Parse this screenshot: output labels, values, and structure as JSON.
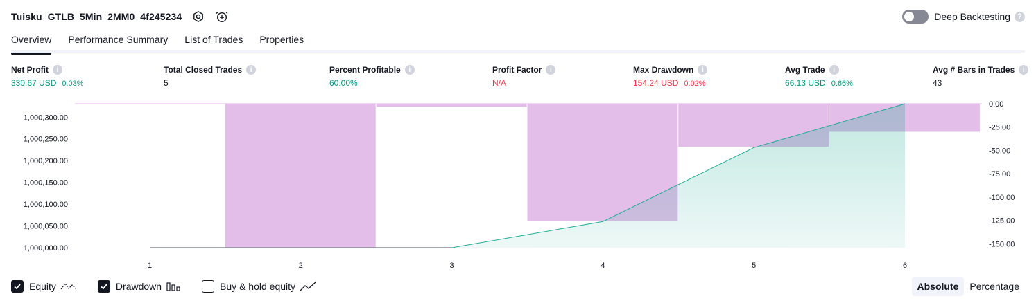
{
  "header": {
    "strategy_name": "Tuisku_GTLB_5Min_2MM0_4f245234",
    "settings_icon": "settings-icon",
    "alert_icon": "alarm-add-icon"
  },
  "deep_backtesting": {
    "label": "Deep Backtesting",
    "enabled": false,
    "help_icon": "question-icon"
  },
  "tabs": [
    {
      "label": "Overview",
      "active": true
    },
    {
      "label": "Performance Summary",
      "active": false
    },
    {
      "label": "List of Trades",
      "active": false
    },
    {
      "label": "Properties",
      "active": false
    }
  ],
  "stats": [
    {
      "label": "Net Profit",
      "value": "330.67 USD",
      "pct": "0.03%",
      "tone": "pos"
    },
    {
      "label": "Total Closed Trades",
      "value": "5",
      "pct": "",
      "tone": "neutral"
    },
    {
      "label": "Percent Profitable",
      "value": "60.00%",
      "pct": "",
      "tone": "pos"
    },
    {
      "label": "Profit Factor",
      "value": "N/A",
      "pct": "",
      "tone": "neg"
    },
    {
      "label": "Max Drawdown",
      "value": "154.24 USD",
      "pct": "0.02%",
      "tone": "neg"
    },
    {
      "label": "Avg Trade",
      "value": "66.13 USD",
      "pct": "0.66%",
      "tone": "pos"
    },
    {
      "label": "Avg # Bars in Trades",
      "value": "43",
      "pct": "",
      "tone": "neutral"
    }
  ],
  "chart_data": {
    "type": "line",
    "x": [
      1,
      2,
      3,
      4,
      5,
      6
    ],
    "x_tick_labels": [
      "1",
      "2",
      "3",
      "4",
      "5",
      "6"
    ],
    "left_axis": {
      "ticks": [
        "1,000,000.00",
        "1,000,050.00",
        "1,000,100.00",
        "1,000,150.00",
        "1,000,200.00",
        "1,000,250.00",
        "1,000,300.00"
      ],
      "ylim": [
        1000000,
        1000330.67
      ]
    },
    "right_axis": {
      "ticks": [
        "0.00",
        "-25.00",
        "-50.00",
        "-75.00",
        "-100.00",
        "-125.00",
        "-150.00"
      ],
      "ylim": [
        -154.24,
        0
      ]
    },
    "series": [
      {
        "name": "Equity",
        "type": "area",
        "color": "#22ab94",
        "values": [
          1000000,
          1000000,
          1000000,
          1000060,
          1000230,
          1000330.67
        ]
      },
      {
        "name": "Drawdown",
        "type": "bar",
        "color": "#ce93d8",
        "values": [
          0,
          -154.24,
          -3,
          -126,
          -46,
          -30
        ]
      }
    ],
    "grid": true
  },
  "legend": [
    {
      "label": "Equity",
      "checked": true,
      "icon": "equity-line-icon"
    },
    {
      "label": "Drawdown",
      "checked": true,
      "icon": "drawdown-bars-icon"
    },
    {
      "label": "Buy & hold equity",
      "checked": false,
      "icon": "buy-hold-line-icon"
    }
  ],
  "mode": {
    "options": [
      "Absolute",
      "Percentage"
    ],
    "selected": "Absolute"
  }
}
